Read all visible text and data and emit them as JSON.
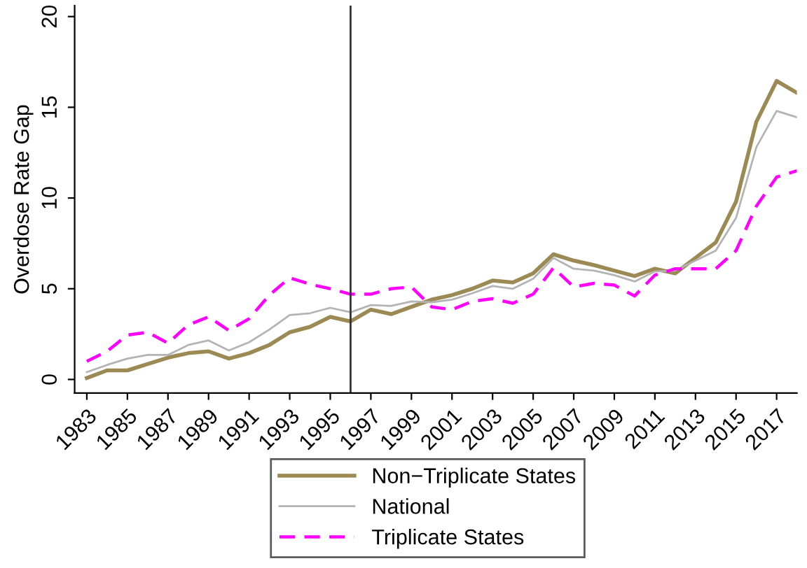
{
  "chart_data": {
    "type": "line",
    "ylabel": "Overdose Rate Gap",
    "x": [
      1983,
      1984,
      1985,
      1986,
      1987,
      1988,
      1989,
      1990,
      1991,
      1992,
      1993,
      1994,
      1995,
      1996,
      1997,
      1998,
      1999,
      2000,
      2001,
      2002,
      2003,
      2004,
      2005,
      2006,
      2007,
      2008,
      2009,
      2010,
      2011,
      2012,
      2013,
      2014,
      2015,
      2016,
      2017,
      2018
    ],
    "series": [
      {
        "name": "Non−Triplicate States",
        "color": "#9c8a55",
        "line_style": "solid",
        "values": [
          0.08,
          0.5,
          0.5,
          0.85,
          1.2,
          1.45,
          1.55,
          1.15,
          1.45,
          1.9,
          2.6,
          2.9,
          3.45,
          3.2,
          3.85,
          3.6,
          4.0,
          4.4,
          4.65,
          5.0,
          5.45,
          5.35,
          5.85,
          6.9,
          6.55,
          6.3,
          6.0,
          5.7,
          6.1,
          5.85,
          6.7,
          7.55,
          9.8,
          14.2,
          16.45,
          15.8
        ]
      },
      {
        "name": "National",
        "color": "#b4b4b4",
        "line_style": "solid",
        "values": [
          0.4,
          0.8,
          1.15,
          1.35,
          1.35,
          1.9,
          2.15,
          1.6,
          2.05,
          2.75,
          3.55,
          3.65,
          3.95,
          3.7,
          4.1,
          4.05,
          4.3,
          4.25,
          4.4,
          4.75,
          5.15,
          5.0,
          5.55,
          6.7,
          6.1,
          6.0,
          5.75,
          5.4,
          5.95,
          6.0,
          6.55,
          7.1,
          8.9,
          12.8,
          14.8,
          14.45
        ]
      },
      {
        "name": "Triplicate States",
        "color": "#ff00ff",
        "line_style": "dashed",
        "values": [
          1.0,
          1.55,
          2.45,
          2.6,
          2.0,
          3.0,
          3.45,
          2.7,
          3.35,
          4.65,
          5.6,
          5.25,
          5.0,
          4.7,
          4.7,
          5.0,
          5.1,
          4.0,
          3.85,
          4.3,
          4.45,
          4.2,
          4.7,
          6.15,
          5.1,
          5.3,
          5.2,
          4.6,
          5.75,
          6.1,
          6.1,
          6.1,
          7.1,
          9.55,
          11.15,
          11.5
        ]
      }
    ],
    "xlim": [
      1982.4,
      2018
    ],
    "xticks": [
      1983,
      1985,
      1987,
      1989,
      1991,
      1993,
      1995,
      1997,
      1999,
      2001,
      2003,
      2005,
      2007,
      2009,
      2011,
      2013,
      2015,
      2017
    ],
    "ylim": [
      -0.75,
      20.6
    ],
    "yticks": [
      0,
      5,
      10,
      15,
      20
    ],
    "ref_lines": [
      {
        "axis": "x",
        "value": 1996,
        "color": "#333333"
      }
    ],
    "grid": false,
    "legend": "bottom",
    "marker": "none"
  }
}
